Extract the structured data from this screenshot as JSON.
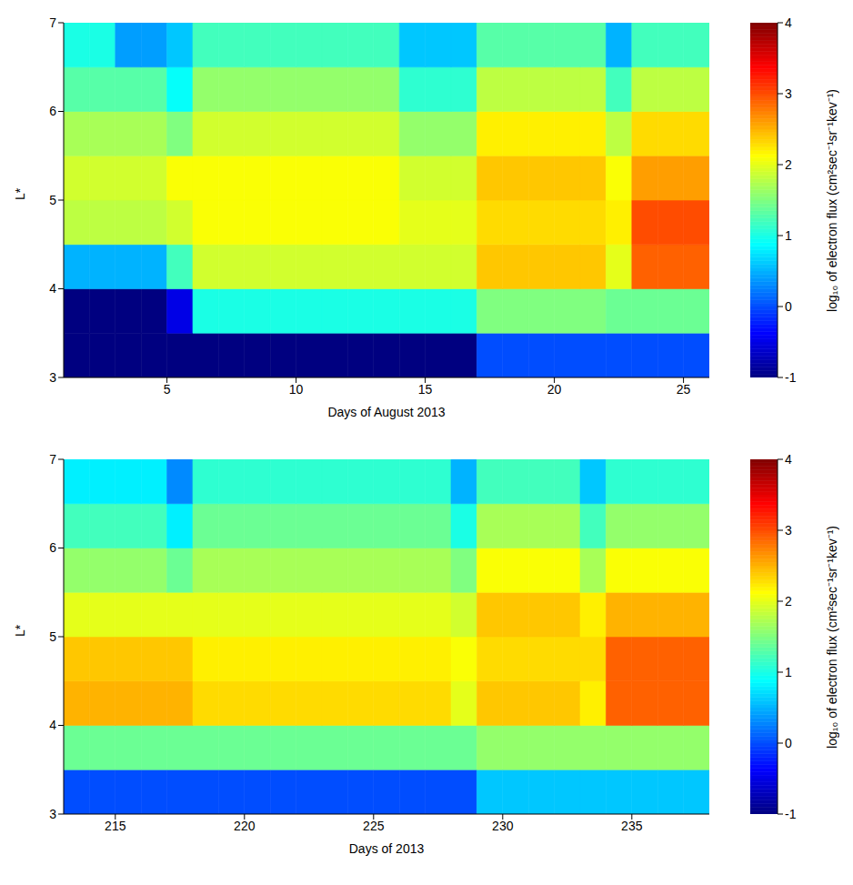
{
  "chart_data": [
    {
      "type": "heatmap",
      "x_label": "Days of August 2013",
      "y_label": "L*",
      "xlim": [
        1,
        26
      ],
      "xticks": [
        5,
        10,
        15,
        20,
        25
      ],
      "ylim": [
        3,
        7
      ],
      "yticks": [
        3,
        4,
        5,
        6,
        7
      ],
      "x_edges": [
        1,
        2,
        3,
        4,
        5,
        6,
        7,
        8,
        9,
        10,
        11,
        12,
        13,
        14,
        15,
        16,
        17,
        18,
        19,
        20,
        21,
        22,
        23,
        24,
        25,
        26
      ],
      "y_edges": [
        3,
        3.5,
        4,
        4.5,
        5,
        5.5,
        6,
        6.5,
        7
      ],
      "cells": [
        [
          -1,
          -1,
          -1,
          -1,
          -1,
          -1,
          -1,
          -1,
          -1,
          -1,
          -1,
          -1,
          -1,
          -1,
          -1,
          -1,
          0,
          0,
          0,
          0,
          0,
          0,
          0,
          0,
          0
        ],
        [
          -1,
          -1,
          -1,
          -1,
          -0.5,
          1,
          1,
          1,
          1,
          1,
          1,
          1,
          1,
          1,
          1,
          1,
          1.5,
          1.5,
          1.5,
          1.5,
          1.5,
          1.4,
          1.4,
          1.4,
          1.4
        ],
        [
          0.5,
          0.5,
          0.5,
          0.5,
          1.2,
          1.9,
          1.9,
          1.9,
          1.9,
          1.9,
          1.9,
          1.9,
          1.9,
          1.9,
          1.9,
          1.9,
          2.4,
          2.4,
          2.4,
          2.4,
          2.4,
          2,
          2.9,
          2.9,
          2.9
        ],
        [
          1.8,
          1.8,
          1.8,
          1.8,
          1.9,
          2.1,
          2.1,
          2.1,
          2.1,
          2.1,
          2.1,
          2.1,
          2.1,
          2,
          2,
          2,
          2.3,
          2.3,
          2.3,
          2.3,
          2.3,
          2.2,
          3,
          3,
          3
        ],
        [
          1.9,
          1.9,
          1.9,
          1.9,
          2.1,
          2.1,
          2.1,
          2.1,
          2.1,
          2.1,
          2.1,
          2.1,
          2.1,
          1.9,
          1.9,
          1.9,
          2.4,
          2.4,
          2.4,
          2.4,
          2.4,
          2.1,
          2.6,
          2.6,
          2.6
        ],
        [
          1.7,
          1.7,
          1.7,
          1.7,
          1.5,
          1.9,
          1.9,
          1.9,
          1.9,
          1.9,
          1.9,
          1.9,
          1.9,
          1.6,
          1.6,
          1.6,
          2.2,
          2.2,
          2.2,
          2.2,
          2.2,
          1.8,
          2.3,
          2.3,
          2.3
        ],
        [
          1.3,
          1.3,
          1.3,
          1.3,
          0.9,
          1.6,
          1.6,
          1.6,
          1.6,
          1.6,
          1.6,
          1.6,
          1.6,
          1.1,
          1.1,
          1.1,
          1.8,
          1.8,
          1.8,
          1.8,
          1.8,
          1.2,
          1.8,
          1.8,
          1.8
        ],
        [
          1,
          1,
          0.4,
          0.4,
          0.6,
          1.2,
          1.2,
          1.2,
          1.2,
          1.2,
          1.2,
          1.2,
          1.2,
          0.6,
          0.6,
          0.6,
          1.3,
          1.3,
          1.3,
          1.3,
          1.3,
          0.5,
          1.2,
          1.2,
          1.2
        ]
      ],
      "colorbar": {
        "range": [
          -1,
          4
        ],
        "ticks": [
          -1,
          0,
          1,
          2,
          3,
          4
        ],
        "label": "log₁₀ of electron flux (cm²sec⁻¹sr⁻¹kev⁻¹)"
      }
    },
    {
      "type": "heatmap",
      "x_label": "Days of 2013",
      "y_label": "L*",
      "xlim": [
        213,
        238
      ],
      "xticks": [
        215,
        220,
        225,
        230,
        235
      ],
      "ylim": [
        3,
        7
      ],
      "yticks": [
        3,
        4,
        5,
        6,
        7
      ],
      "x_edges": [
        213,
        214,
        215,
        216,
        217,
        218,
        219,
        220,
        221,
        222,
        223,
        224,
        225,
        226,
        227,
        228,
        229,
        230,
        231,
        232,
        233,
        234,
        235,
        236,
        237,
        238
      ],
      "y_edges": [
        3,
        3.5,
        4,
        4.5,
        5,
        5.5,
        6,
        6.5,
        7
      ],
      "cells": [
        [
          0,
          0,
          0,
          0,
          0,
          0,
          0,
          0,
          0,
          0,
          0,
          0,
          0,
          0,
          0,
          0,
          0.6,
          0.6,
          0.6,
          0.6,
          0.6,
          0.6,
          0.6,
          0.6,
          0.6
        ],
        [
          1.4,
          1.4,
          1.4,
          1.4,
          1.4,
          1.4,
          1.4,
          1.4,
          1.4,
          1.4,
          1.4,
          1.4,
          1.4,
          1.4,
          1.4,
          1.4,
          1.6,
          1.6,
          1.6,
          1.6,
          1.6,
          1.6,
          1.6,
          1.6,
          1.6
        ],
        [
          2.5,
          2.5,
          2.5,
          2.5,
          2.5,
          2.3,
          2.3,
          2.3,
          2.3,
          2.3,
          2.3,
          2.3,
          2.3,
          2.3,
          2.3,
          2,
          2.4,
          2.4,
          2.4,
          2.4,
          2.2,
          2.9,
          2.9,
          2.9,
          2.9
        ],
        [
          2.4,
          2.4,
          2.4,
          2.4,
          2.4,
          2.2,
          2.2,
          2.2,
          2.2,
          2.2,
          2.2,
          2.2,
          2.2,
          2.2,
          2.2,
          2.1,
          2.3,
          2.3,
          2.3,
          2.3,
          2.3,
          2.9,
          2.9,
          2.9,
          2.9
        ],
        [
          2,
          2,
          2,
          2,
          2,
          2,
          2,
          2,
          2,
          2,
          2,
          2,
          2,
          2,
          2,
          1.9,
          2.4,
          2.4,
          2.4,
          2.4,
          2.2,
          2.5,
          2.5,
          2.5,
          2.5
        ],
        [
          1.6,
          1.6,
          1.6,
          1.6,
          1.4,
          1.7,
          1.7,
          1.7,
          1.7,
          1.7,
          1.7,
          1.7,
          1.7,
          1.7,
          1.7,
          1.5,
          2.1,
          2.1,
          2.1,
          2.1,
          1.7,
          2.1,
          2.1,
          2.1,
          2.1
        ],
        [
          1.2,
          1.2,
          1.2,
          1.2,
          0.8,
          1.4,
          1.4,
          1.4,
          1.4,
          1.4,
          1.4,
          1.4,
          1.4,
          1.4,
          1.4,
          1,
          1.7,
          1.7,
          1.7,
          1.7,
          1.2,
          1.6,
          1.6,
          1.6,
          1.6
        ],
        [
          0.8,
          0.8,
          0.8,
          0.8,
          0.3,
          1.1,
          1.1,
          1.1,
          1.1,
          1.1,
          1.1,
          1.1,
          1.1,
          1.1,
          1.1,
          0.5,
          1.2,
          1.2,
          1.2,
          1.2,
          0.6,
          1.1,
          1.1,
          1.1,
          1.1
        ]
      ],
      "colorbar": {
        "range": [
          -1,
          4
        ],
        "ticks": [
          -1,
          0,
          1,
          2,
          3,
          4
        ],
        "label": "log₁₀ of electron flux (cm²sec⁻¹sr⁻¹kev⁻¹)"
      }
    }
  ]
}
